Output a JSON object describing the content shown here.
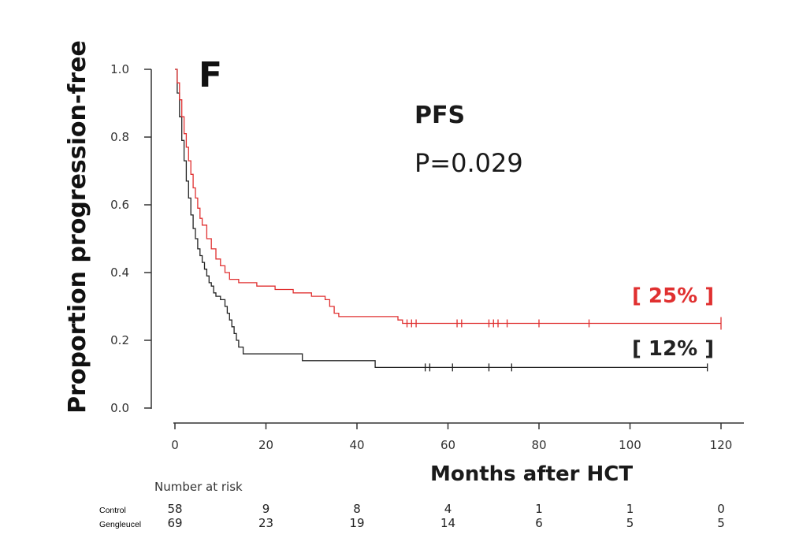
{
  "chart_data": {
    "type": "line",
    "subtype": "kaplan-meier",
    "panel_label": "F",
    "title": "PFS",
    "p_value": "P=0.029",
    "xlabel": "Months after HCT",
    "ylabel": "Proportion progression-free",
    "xlim": [
      0,
      120
    ],
    "ylim": [
      0,
      1.0
    ],
    "x_ticks": [
      0,
      20,
      40,
      60,
      80,
      100,
      120
    ],
    "x_tick_labels": [
      "0",
      "20",
      "40",
      "60",
      "80",
      "100",
      "120"
    ],
    "y_ticks": [
      0,
      0.2,
      0.4,
      0.6,
      0.8,
      1.0
    ],
    "y_tick_labels": [
      "0.0",
      "0.2",
      "0.4",
      "0.6",
      "0.8",
      "1.0"
    ],
    "grid": false,
    "series": [
      {
        "key": "control",
        "color": "#222222",
        "end_label": "[ 12% ]",
        "points": [
          [
            0,
            1.0
          ],
          [
            0.5,
            0.93
          ],
          [
            1,
            0.86
          ],
          [
            1.5,
            0.79
          ],
          [
            2,
            0.73
          ],
          [
            2.5,
            0.67
          ],
          [
            3,
            0.62
          ],
          [
            3.5,
            0.57
          ],
          [
            4,
            0.53
          ],
          [
            4.5,
            0.5
          ],
          [
            5,
            0.47
          ],
          [
            5.5,
            0.45
          ],
          [
            6,
            0.43
          ],
          [
            6.5,
            0.41
          ],
          [
            7,
            0.39
          ],
          [
            7.5,
            0.37
          ],
          [
            8,
            0.36
          ],
          [
            8.5,
            0.34
          ],
          [
            9,
            0.33
          ],
          [
            10,
            0.32
          ],
          [
            11,
            0.3
          ],
          [
            11.5,
            0.28
          ],
          [
            12,
            0.26
          ],
          [
            12.5,
            0.24
          ],
          [
            13,
            0.22
          ],
          [
            13.5,
            0.2
          ],
          [
            14,
            0.18
          ],
          [
            15,
            0.16
          ],
          [
            20,
            0.16
          ],
          [
            28,
            0.14
          ],
          [
            44,
            0.12
          ],
          [
            117,
            0.12
          ]
        ],
        "censor_x": [
          55,
          56,
          61,
          69,
          74,
          117
        ]
      },
      {
        "key": "gengleucel",
        "color": "#e03030",
        "end_label": "[ 25% ]",
        "points": [
          [
            0,
            1.0
          ],
          [
            0.5,
            0.96
          ],
          [
            1,
            0.91
          ],
          [
            1.5,
            0.86
          ],
          [
            2,
            0.81
          ],
          [
            2.5,
            0.77
          ],
          [
            3,
            0.73
          ],
          [
            3.5,
            0.69
          ],
          [
            4,
            0.65
          ],
          [
            4.5,
            0.62
          ],
          [
            5,
            0.59
          ],
          [
            5.5,
            0.56
          ],
          [
            6,
            0.54
          ],
          [
            7,
            0.5
          ],
          [
            8,
            0.47
          ],
          [
            9,
            0.44
          ],
          [
            10,
            0.42
          ],
          [
            11,
            0.4
          ],
          [
            12,
            0.38
          ],
          [
            14,
            0.37
          ],
          [
            18,
            0.36
          ],
          [
            22,
            0.35
          ],
          [
            26,
            0.34
          ],
          [
            30,
            0.33
          ],
          [
            33,
            0.32
          ],
          [
            34,
            0.3
          ],
          [
            35,
            0.28
          ],
          [
            36,
            0.27
          ],
          [
            48,
            0.27
          ],
          [
            49,
            0.26
          ],
          [
            50,
            0.25
          ],
          [
            120,
            0.25
          ]
        ],
        "censor_x": [
          51,
          52,
          53,
          62,
          63,
          69,
          70,
          71,
          73,
          80,
          91,
          120
        ]
      }
    ]
  },
  "risk_table": {
    "header": "Number at risk",
    "times": [
      0,
      20,
      40,
      60,
      80,
      100,
      120
    ],
    "rows": [
      {
        "label": "Control",
        "counts": [
          "58",
          "9",
          "8",
          "4",
          "1",
          "1",
          "0"
        ]
      },
      {
        "label": "Gengleucel",
        "counts": [
          "69",
          "23",
          "19",
          "14",
          "6",
          "5",
          "5"
        ]
      }
    ]
  }
}
